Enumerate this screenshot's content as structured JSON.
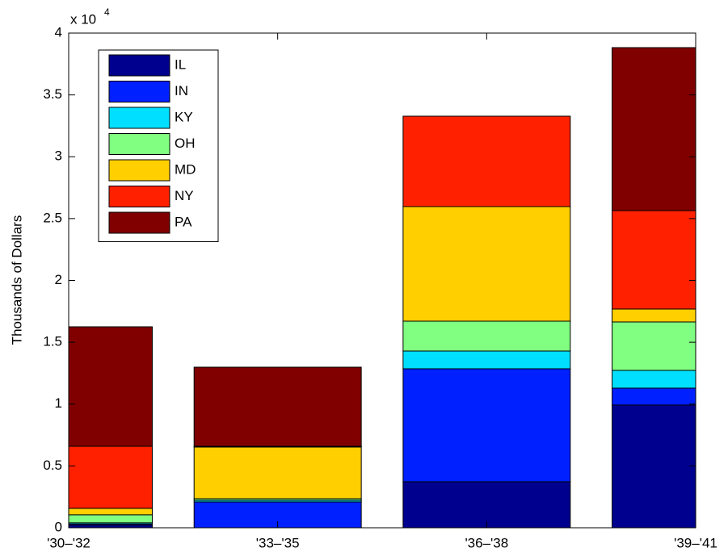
{
  "chart_data": {
    "type": "stacked_bar",
    "y_label": "Thousands of Dollars",
    "y_multiplier": "x 10",
    "y_exponent": "4",
    "categories": [
      "'30–'32",
      "'33–'35",
      "'36–'38",
      "'39–'41"
    ],
    "xlim": [
      1,
      4
    ],
    "ylim": [
      0,
      40000
    ],
    "yticks": [
      0,
      {
        "value": 5000,
        "label": "0.5"
      },
      {
        "value": 10000,
        "label": "1"
      },
      {
        "value": 15000,
        "label": "1.5"
      },
      {
        "value": 20000,
        "label": "2"
      },
      {
        "value": 25000,
        "label": "2.5"
      },
      {
        "value": 30000,
        "label": "3"
      },
      {
        "value": 35000,
        "label": "3.5"
      },
      {
        "value": 40000,
        "label": "4"
      }
    ],
    "grid": false,
    "legend": "upper left",
    "series": [
      {
        "name": "IL",
        "color": "#00008f",
        "values": [
          200,
          0,
          3720,
          9920
        ]
      },
      {
        "name": "IN",
        "color": "#0020ff",
        "values": [
          100,
          2090,
          9135,
          1370
        ]
      },
      {
        "name": "KY",
        "color": "#00dfff",
        "values": [
          100,
          130,
          1435,
          1435
        ]
      },
      {
        "name": "OH",
        "color": "#80ff80",
        "values": [
          650,
          130,
          2415,
          3915
        ]
      },
      {
        "name": "MD",
        "color": "#ffcf00",
        "values": [
          520,
          4175,
          9265,
          1045
        ]
      },
      {
        "name": "NY",
        "color": "#ff2000",
        "values": [
          5020,
          65,
          7310,
          7960
        ]
      },
      {
        "name": "PA",
        "color": "#800000",
        "values": [
          9660,
          6395,
          0,
          13180
        ]
      }
    ]
  }
}
